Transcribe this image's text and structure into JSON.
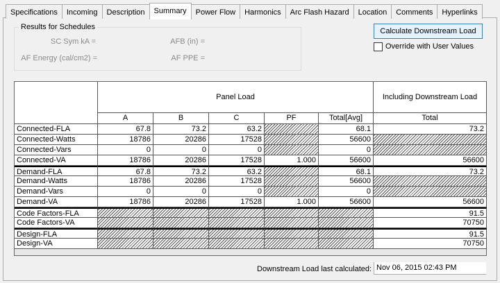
{
  "tabs": [
    "Specifications",
    "Incoming",
    "Description",
    "Summary",
    "Power Flow",
    "Harmonics",
    "Arc Flash Hazard",
    "Location",
    "Comments",
    "Hyperlinks"
  ],
  "results": {
    "title": "Results for Schedules",
    "fields": [
      "SC Sym kA =",
      "AFB (in) =",
      "AF Energy (cal/cm2) =",
      "AF PPE ="
    ]
  },
  "button": "Calculate Downstream Load",
  "checkbox": "Override with User Values",
  "table": {
    "groups": [
      "Panel Load",
      "Including Downstream Load"
    ],
    "columns": [
      "A",
      "B",
      "C",
      "PF",
      "Total[Avg]",
      "Total"
    ],
    "rows": [
      {
        "label": "Connected-FLA",
        "cells": [
          "67.8",
          "73.2",
          "63.2",
          null,
          "68.1",
          "73.2"
        ]
      },
      {
        "label": "Connected-Watts",
        "cells": [
          "18786",
          "20286",
          "17528",
          null,
          "56600",
          null
        ]
      },
      {
        "label": "Connected-Vars",
        "cells": [
          "0",
          "0",
          "0",
          null,
          "0",
          null
        ]
      },
      {
        "label": "Connected-VA",
        "cells": [
          "18786",
          "20286",
          "17528",
          "1.000",
          "56600",
          "56600"
        ]
      },
      {
        "label": "Demand-FLA",
        "cells": [
          "67.8",
          "73.2",
          "63.2",
          null,
          "68.1",
          "73.2"
        ]
      },
      {
        "label": "Demand-Watts",
        "cells": [
          "18786",
          "20286",
          "17528",
          null,
          "56600",
          null
        ]
      },
      {
        "label": "Demand-Vars",
        "cells": [
          "0",
          "0",
          "0",
          null,
          "0",
          null
        ]
      },
      {
        "label": "Demand-VA",
        "cells": [
          "18786",
          "20286",
          "17528",
          "1.000",
          "56600",
          "56600"
        ]
      },
      {
        "label": "Code Factors-FLA",
        "cells": [
          null,
          null,
          null,
          null,
          null,
          "91.5"
        ]
      },
      {
        "label": "Code Factors-VA",
        "cells": [
          null,
          null,
          null,
          null,
          null,
          "70750"
        ]
      },
      {
        "label": "Design-FLA",
        "cells": [
          null,
          null,
          null,
          null,
          null,
          "91.5"
        ]
      },
      {
        "label": "Design-VA",
        "cells": [
          null,
          null,
          null,
          null,
          null,
          "70750"
        ]
      }
    ]
  },
  "footer": {
    "label": "Downstream Load last calculated:",
    "value": "Nov 06, 2015 02:43 PM"
  }
}
